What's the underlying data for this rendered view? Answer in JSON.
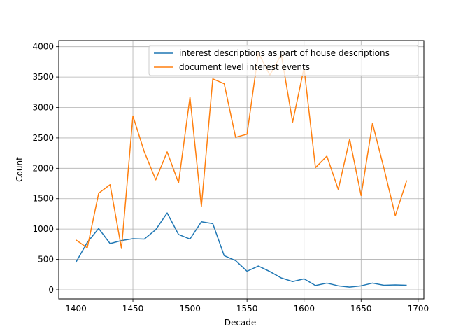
{
  "chart_data": {
    "type": "line",
    "xlabel": "Decade",
    "ylabel": "Count",
    "xlim": [
      1385,
      1705
    ],
    "ylim": [
      -150,
      4100
    ],
    "xticks": [
      1400,
      1450,
      1500,
      1550,
      1600,
      1650,
      1700
    ],
    "yticks": [
      0,
      500,
      1000,
      1500,
      2000,
      2500,
      3000,
      3500,
      4000
    ],
    "grid": true,
    "legend_position": "top-right",
    "x": [
      1400,
      1410,
      1420,
      1430,
      1440,
      1450,
      1460,
      1470,
      1480,
      1490,
      1500,
      1510,
      1520,
      1530,
      1540,
      1550,
      1560,
      1570,
      1580,
      1590,
      1600,
      1610,
      1620,
      1630,
      1640,
      1650,
      1660,
      1670,
      1680,
      1690
    ],
    "series": [
      {
        "name": "interest descriptions as part of house descriptions",
        "color": "#1f77b4",
        "values": [
          450,
          780,
          1010,
          760,
          810,
          840,
          835,
          990,
          1265,
          910,
          835,
          1120,
          1090,
          560,
          480,
          305,
          390,
          300,
          195,
          135,
          180,
          70,
          110,
          65,
          45,
          65,
          110,
          75,
          80,
          75
        ]
      },
      {
        "name": "document level interest events",
        "color": "#ff7f0e",
        "values": [
          820,
          690,
          1590,
          1730,
          680,
          2860,
          2270,
          1810,
          2270,
          1760,
          3170,
          1370,
          3470,
          3390,
          2510,
          2560,
          3900,
          3530,
          3870,
          2760,
          3650,
          2010,
          2200,
          1650,
          2480,
          1550,
          2740,
          2000,
          1220,
          1800
        ]
      }
    ]
  }
}
